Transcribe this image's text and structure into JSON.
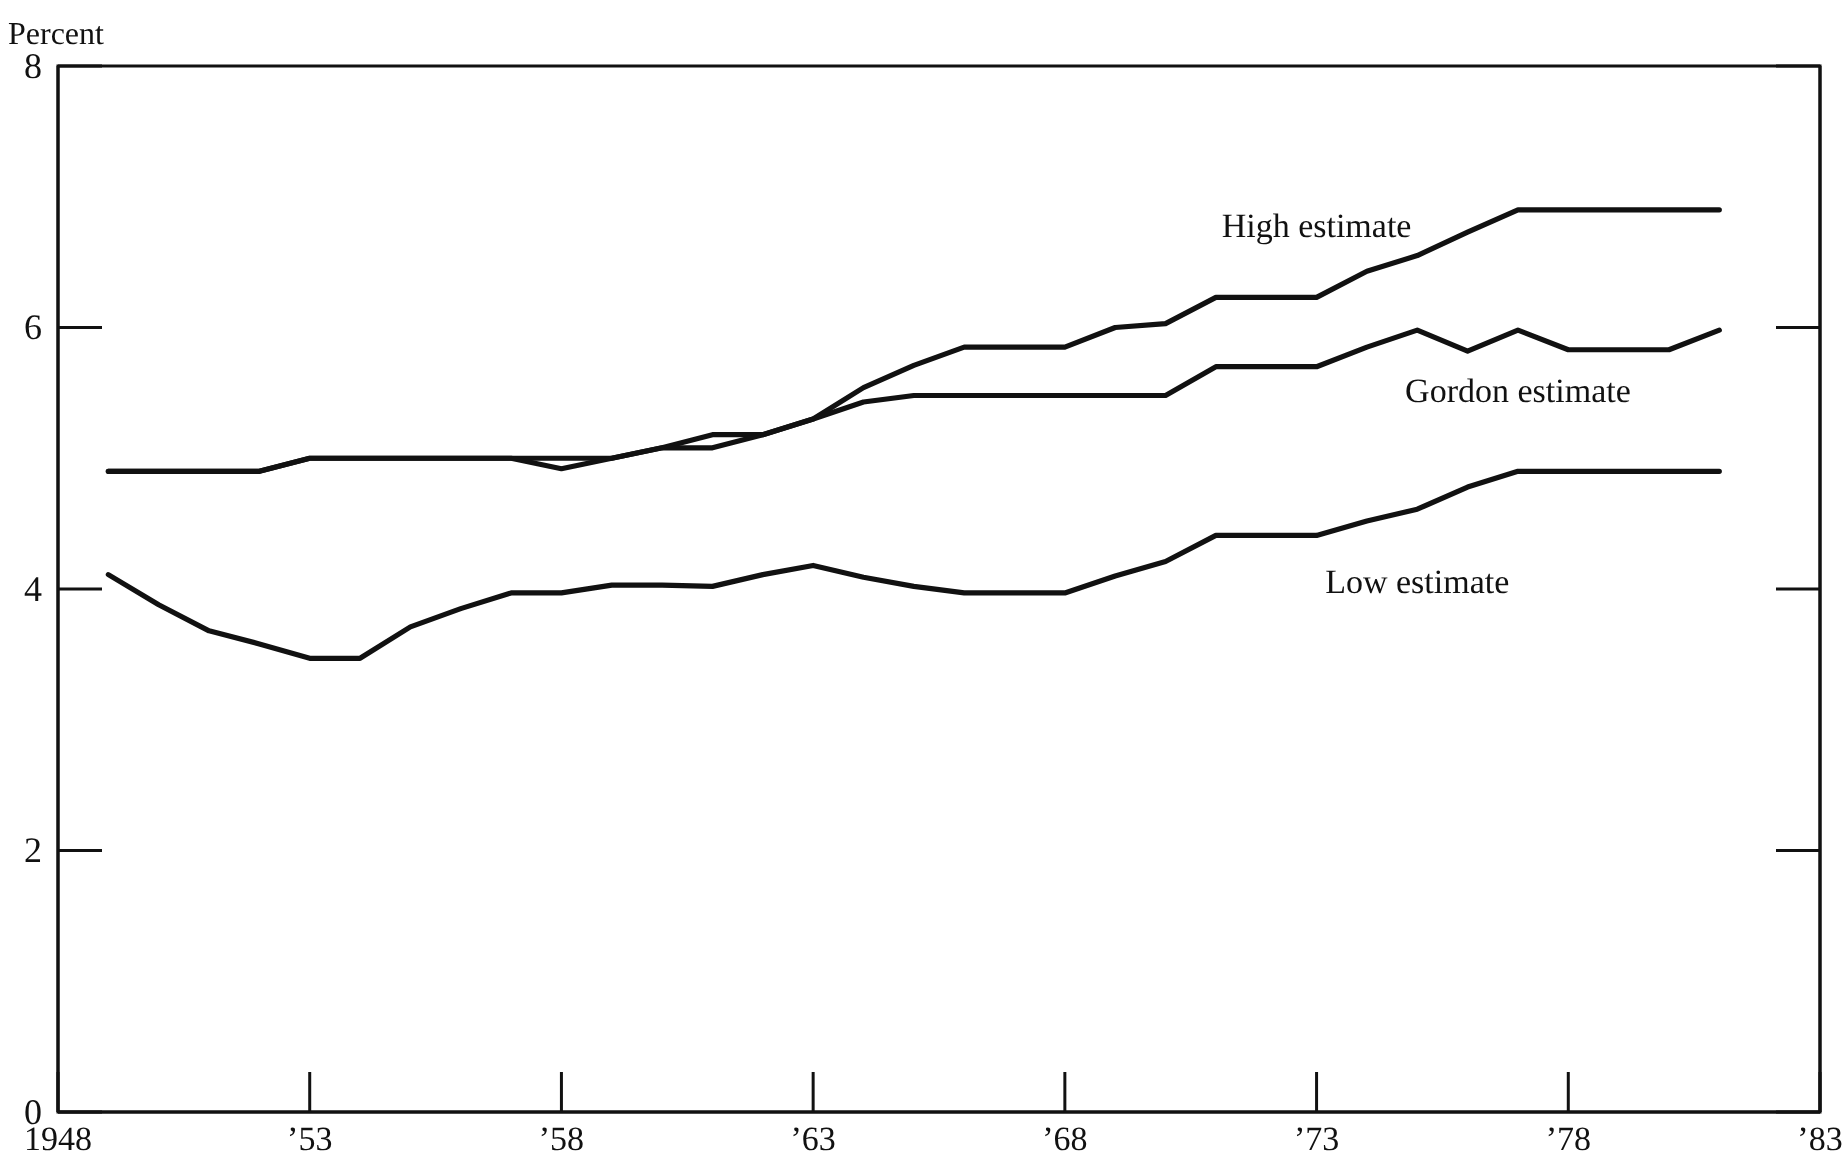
{
  "chart_data": {
    "type": "line",
    "ylabel": "Percent",
    "x": [
      1949,
      1950,
      1951,
      1952,
      1953,
      1954,
      1955,
      1956,
      1957,
      1958,
      1959,
      1960,
      1961,
      1962,
      1963,
      1964,
      1965,
      1966,
      1967,
      1968,
      1969,
      1970,
      1971,
      1972,
      1973,
      1974,
      1975,
      1976,
      1977,
      1978,
      1979,
      1980,
      1981
    ],
    "series": [
      {
        "name": "High estimate",
        "color": "#111111",
        "values": [
          4.9,
          4.9,
          4.9,
          4.9,
          5.0,
          5.0,
          5.0,
          5.0,
          5.0,
          5.0,
          5.0,
          5.08,
          5.18,
          5.18,
          5.3,
          5.54,
          5.71,
          5.85,
          5.85,
          5.85,
          6.0,
          6.03,
          6.23,
          6.23,
          6.23,
          6.43,
          6.55,
          6.73,
          6.9,
          6.9,
          6.9,
          6.9,
          6.9
        ]
      },
      {
        "name": "Gordon estimate",
        "color": "#111111",
        "values": [
          4.9,
          4.9,
          4.9,
          4.9,
          5.0,
          5.0,
          5.0,
          5.0,
          5.0,
          4.92,
          5.0,
          5.08,
          5.08,
          5.18,
          5.3,
          5.43,
          5.48,
          5.48,
          5.48,
          5.48,
          5.48,
          5.48,
          5.7,
          5.7,
          5.7,
          5.85,
          5.98,
          5.82,
          5.98,
          5.83,
          5.83,
          5.83,
          5.98
        ]
      },
      {
        "name": "Low estimate",
        "color": "#111111",
        "values": [
          4.11,
          3.88,
          3.68,
          3.58,
          3.47,
          3.47,
          3.71,
          3.85,
          3.97,
          3.97,
          4.03,
          4.03,
          4.02,
          4.11,
          4.18,
          4.09,
          4.02,
          3.97,
          3.97,
          3.97,
          4.1,
          4.21,
          4.41,
          4.41,
          4.41,
          4.52,
          4.61,
          4.78,
          4.9,
          4.9,
          4.9,
          4.9,
          4.9
        ]
      }
    ],
    "xlim": [
      1948,
      1983
    ],
    "xticks": [
      1948,
      {
        "value": 1953,
        "label": "’53"
      },
      {
        "value": 1958,
        "label": "’58"
      },
      {
        "value": 1963,
        "label": "’63"
      },
      {
        "value": 1968,
        "label": "’68"
      },
      {
        "value": 1973,
        "label": "’73"
      },
      {
        "value": 1978,
        "label": "’78"
      },
      {
        "value": 1983,
        "label": "’83"
      }
    ],
    "ylim": [
      0,
      8
    ],
    "yticks": [
      0,
      2,
      4,
      6,
      8
    ],
    "line_style": "solid",
    "marker": "none"
  }
}
